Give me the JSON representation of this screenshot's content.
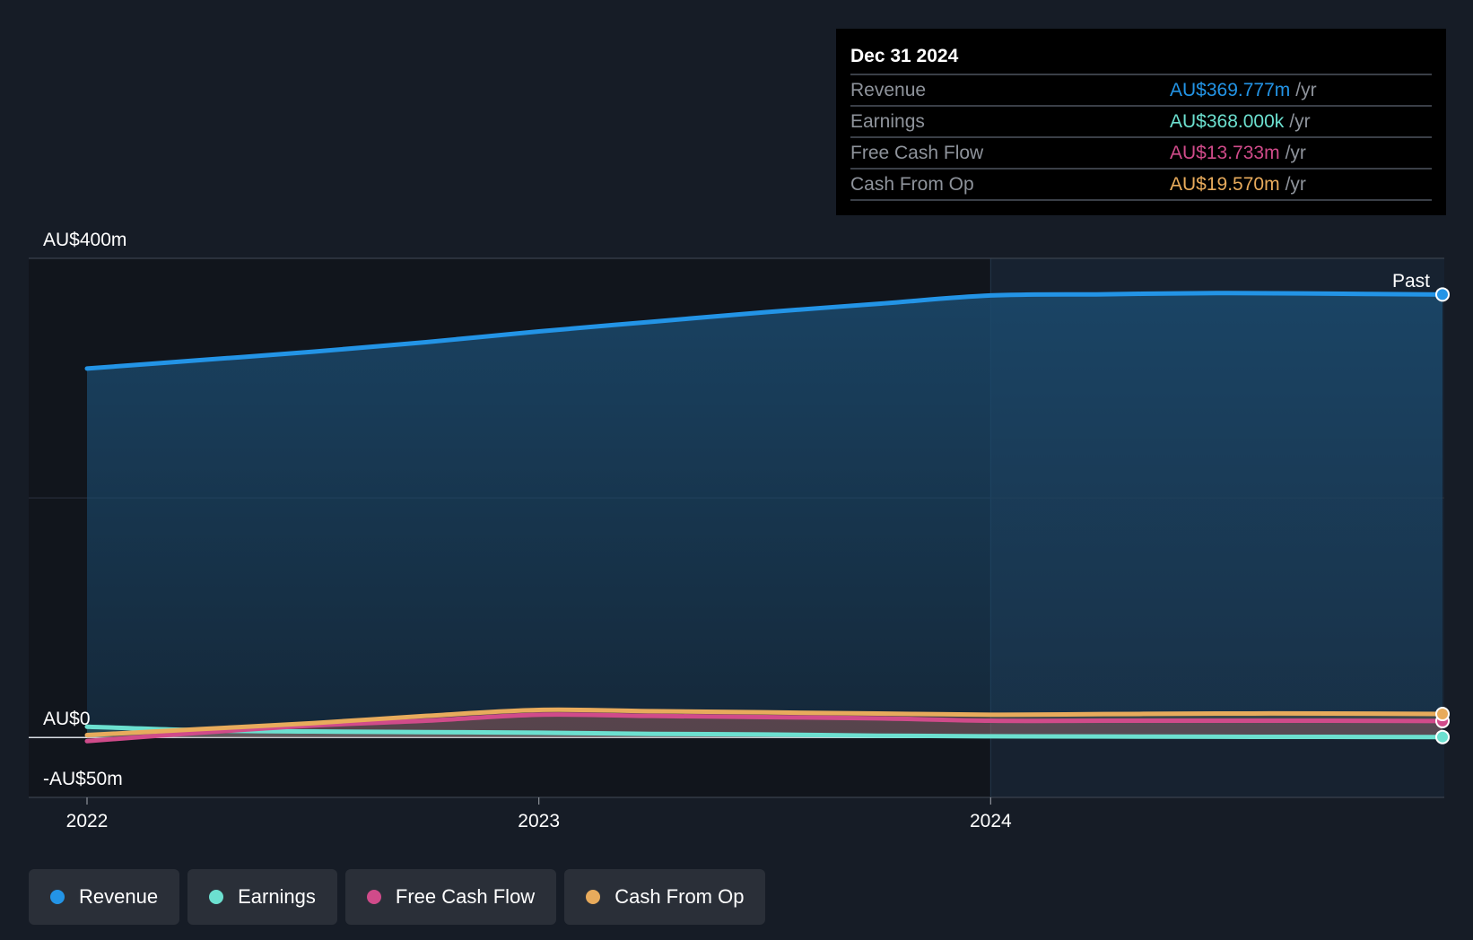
{
  "chart_data": {
    "type": "area",
    "y_axis": {
      "unit_prefix": "AU$",
      "ylim": [
        -50,
        400
      ],
      "tick_labels": [
        "AU$400m",
        "AU$0",
        "-AU$50m"
      ],
      "tick_values": [
        400,
        0,
        -50
      ],
      "gridlines": [
        400,
        200,
        0,
        -50
      ]
    },
    "x_axis": {
      "range": [
        2021.9,
        2025.0
      ],
      "ticks": [
        {
          "label": "2022",
          "value": 2022.0
        },
        {
          "label": "2023",
          "value": 2023.0
        },
        {
          "label": "2024",
          "value": 2024.0
        }
      ]
    },
    "past_start": 2024.0,
    "past_label": "Past",
    "series": [
      {
        "name": "Revenue",
        "color": "#2394e6",
        "area": true,
        "x": [
          2022.0,
          2022.25,
          2022.5,
          2022.75,
          2023.0,
          2023.25,
          2023.5,
          2023.75,
          2024.0,
          2024.25,
          2024.5,
          2024.75,
          2025.0
        ],
        "values": [
          308,
          315,
          322,
          330,
          339,
          347,
          355,
          362,
          369,
          370,
          371,
          370.5,
          369.8
        ]
      },
      {
        "name": "Earnings",
        "color": "#6ce0d0",
        "area": false,
        "x": [
          2022.0,
          2022.25,
          2022.5,
          2022.75,
          2023.0,
          2023.25,
          2023.5,
          2023.75,
          2024.0,
          2024.25,
          2024.5,
          2024.75,
          2025.0
        ],
        "values": [
          9,
          6,
          5,
          4.5,
          4,
          3,
          2.5,
          1.5,
          1,
          0.8,
          0.6,
          0.5,
          0.4
        ]
      },
      {
        "name": "Free Cash Flow",
        "color": "#d04b8a",
        "area": false,
        "x": [
          2022.0,
          2022.25,
          2022.5,
          2022.75,
          2023.0,
          2023.25,
          2023.5,
          2023.75,
          2024.0,
          2024.25,
          2024.5,
          2024.75,
          2025.0
        ],
        "values": [
          -3,
          4,
          10,
          14,
          19,
          18,
          17,
          16,
          14,
          14,
          14,
          14,
          13.7
        ]
      },
      {
        "name": "Cash From Op",
        "color": "#e8ab5c",
        "area": false,
        "x": [
          2022.0,
          2022.25,
          2022.5,
          2022.75,
          2023.0,
          2023.25,
          2023.5,
          2023.75,
          2024.0,
          2024.25,
          2024.5,
          2024.75,
          2025.0
        ],
        "values": [
          2,
          7,
          12,
          18,
          23,
          22,
          21,
          20,
          19,
          19.5,
          20,
          20,
          19.6
        ]
      }
    ]
  },
  "tooltip": {
    "date": "Dec 31 2024",
    "unit": "/yr",
    "rows": [
      {
        "label": "Revenue",
        "value": "AU$369.777m",
        "color": "#2394e6"
      },
      {
        "label": "Earnings",
        "value": "AU$368.000k",
        "color": "#6ce0d0"
      },
      {
        "label": "Free Cash Flow",
        "value": "AU$13.733m",
        "color": "#d04b8a"
      },
      {
        "label": "Cash From Op",
        "value": "AU$19.570m",
        "color": "#e8ab5c"
      }
    ]
  },
  "legend": [
    {
      "label": "Revenue",
      "color": "#2394e6"
    },
    {
      "label": "Earnings",
      "color": "#6ce0d0"
    },
    {
      "label": "Free Cash Flow",
      "color": "#d04b8a"
    },
    {
      "label": "Cash From Op",
      "color": "#e8ab5c"
    }
  ]
}
